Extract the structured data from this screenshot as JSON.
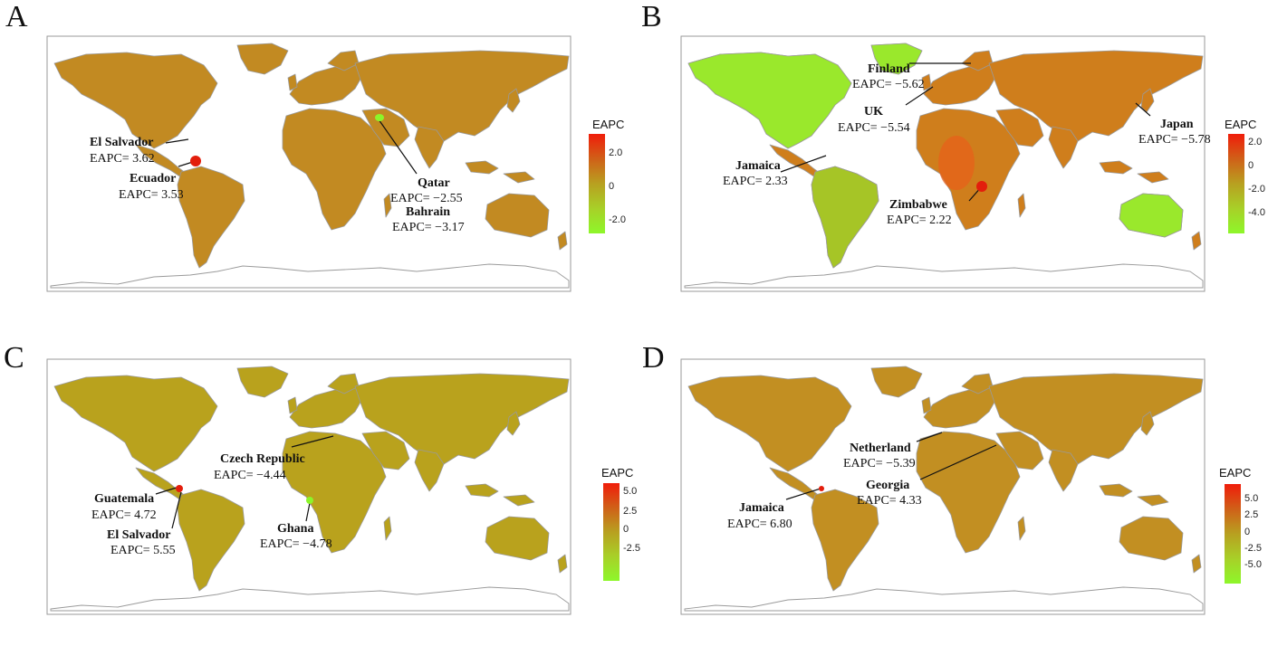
{
  "legend_title": "EAPC",
  "colors": {
    "low": "#8cf52a",
    "mid": "#b7a51e",
    "high": "#f03a10",
    "border": "#9a9a9a"
  },
  "panels": [
    {
      "letter": "A",
      "base_color": "#c28a22",
      "legend_ticks": [
        "2.0",
        "0",
        "-2.0"
      ],
      "annotations": [
        {
          "name": "El Salvador",
          "value": "EAPC= 3.62"
        },
        {
          "name": "Ecuador",
          "value": "EAPC= 3.53"
        },
        {
          "name": "Qatar",
          "value": "EAPC= −2.55"
        },
        {
          "name": "Bahrain",
          "value": "EAPC= −3.17"
        }
      ]
    },
    {
      "letter": "B",
      "base_color": "#cf7e1c",
      "legend_ticks": [
        "2.0",
        "0",
        "-2.0",
        "-4.0"
      ],
      "annotations": [
        {
          "name": "Finland",
          "value": "EAPC= −5.62"
        },
        {
          "name": "UK",
          "value": "EAPC= −5.54"
        },
        {
          "name": "Japan",
          "value": "EAPC= −5.78"
        },
        {
          "name": "Jamaica",
          "value": "EAPC= 2.33"
        },
        {
          "name": "Zimbabwe",
          "value": "EAPC= 2.22"
        }
      ]
    },
    {
      "letter": "C",
      "base_color": "#b9a21d",
      "legend_ticks": [
        "5.0",
        "2.5",
        "0",
        "-2.5"
      ],
      "annotations": [
        {
          "name": "Czech Republic",
          "value": "EAPC= −4.44"
        },
        {
          "name": "Guatemala",
          "value": "EAPC= 4.72"
        },
        {
          "name": "El Salvador",
          "value": "EAPC= 5.55"
        },
        {
          "name": "Ghana",
          "value": "EAPC= −4.78"
        }
      ]
    },
    {
      "letter": "D",
      "base_color": "#c28f22",
      "legend_ticks": [
        "5.0",
        "2.5",
        "0",
        "-2.5",
        "-5.0"
      ],
      "annotations": [
        {
          "name": "Netherland",
          "value": "EAPC= −5.39"
        },
        {
          "name": "Georgia",
          "value": "EAPC= 4.33"
        },
        {
          "name": "Jamaica",
          "value": "EAPC= 6.80"
        }
      ]
    }
  ]
}
